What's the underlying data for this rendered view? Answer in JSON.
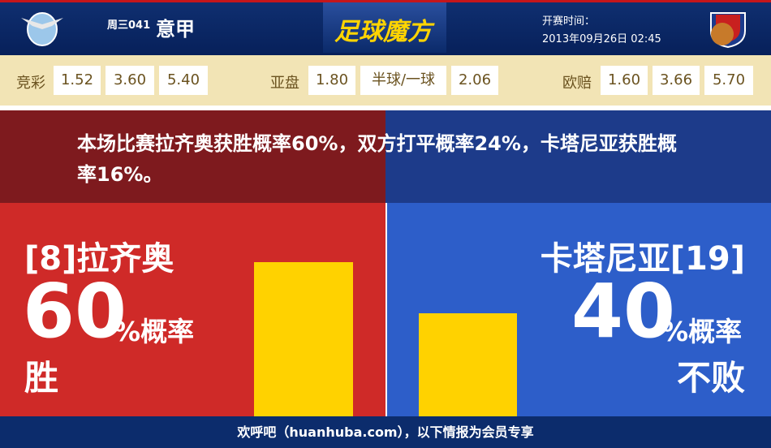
{
  "header": {
    "match_no": "周三041",
    "league": "意甲",
    "logo": "足球魔方",
    "kickoff_label": "开赛时间：",
    "kickoff_time": "2013年09月26日 02:45"
  },
  "odds": [
    {
      "label": "竞彩",
      "values": [
        "1.52",
        "3.60",
        "5.40"
      ]
    },
    {
      "label": "亚盘",
      "values": [
        "1.80",
        "半球/一球",
        "2.06"
      ]
    },
    {
      "label": "欧赔",
      "values": [
        "1.60",
        "3.66",
        "5.70"
      ]
    }
  ],
  "summary": "本场比赛拉齐奥获胜概率60%，双方打平概率24%，卡塔尼亚获胜概率16%。",
  "home": {
    "team": "[8]拉齐奥",
    "probability": 60,
    "unit": "%概率",
    "outcome": "胜"
  },
  "away": {
    "team": "卡塔尼亚[19]",
    "probability": 40,
    "unit": "%概率",
    "outcome": "不败"
  },
  "footer": "欢呼吧（huanhuba.com），以下情报为会员专享"
}
